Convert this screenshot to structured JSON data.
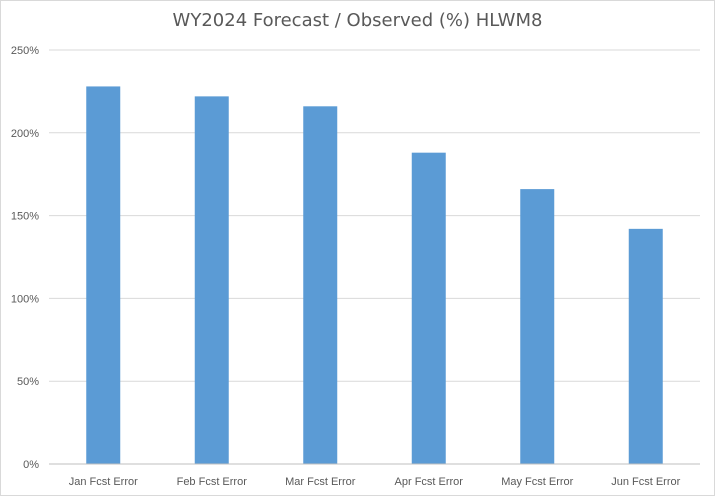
{
  "chart_data": {
    "type": "bar",
    "title": "WY2024 Forecast / Observed (%) HLWM8",
    "categories": [
      "Jan Fcst Error",
      "Feb Fcst Error",
      "Mar Fcst Error",
      "Apr Fcst Error",
      "May Fcst Error",
      "Jun Fcst Error"
    ],
    "values": [
      228,
      222,
      216,
      188,
      166,
      142
    ],
    "y_ticks": [
      "0%",
      "50%",
      "100%",
      "150%",
      "200%",
      "250%"
    ],
    "ylim": [
      0,
      250
    ],
    "grid": true,
    "legend": "none",
    "bar_color": "#5B9BD5",
    "grid_color": "#D9D9D9",
    "axis_color": "#BFBFBF"
  }
}
